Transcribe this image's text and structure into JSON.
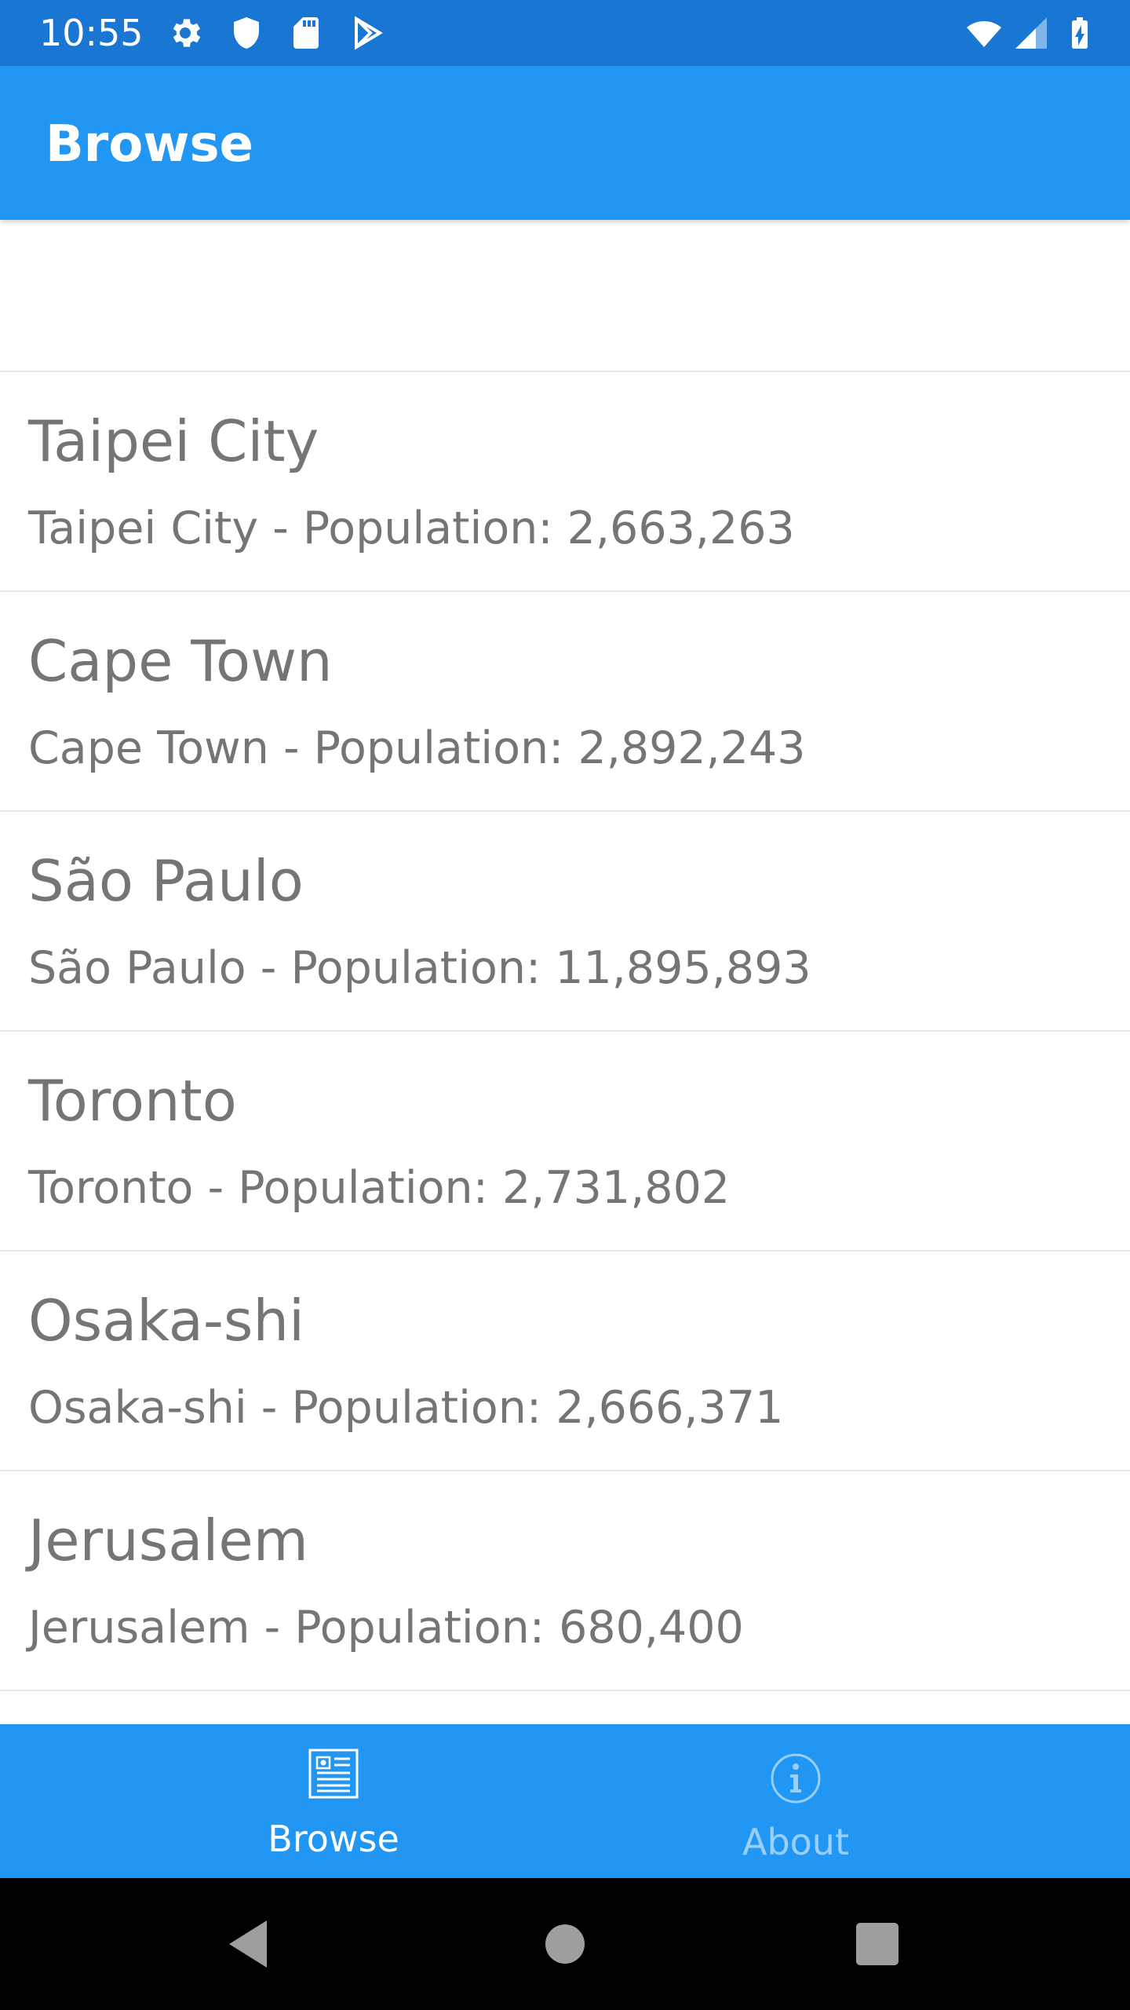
{
  "status_bar": {
    "time": "10:55",
    "icons": [
      "gear-icon",
      "shield-icon",
      "sd-card-icon",
      "play-store-icon",
      "wifi-icon",
      "cell-signal-icon",
      "battery-charging-icon"
    ]
  },
  "app_bar": {
    "title": "Browse"
  },
  "list": {
    "items": [
      {
        "title": "Taipei City",
        "detail": "Taipei City - Population: 2,663,263"
      },
      {
        "title": "Cape Town",
        "detail": "Cape Town - Population: 2,892,243"
      },
      {
        "title": "São Paulo",
        "detail": "São Paulo - Population: 11,895,893"
      },
      {
        "title": "Toronto",
        "detail": "Toronto - Population: 2,731,802"
      },
      {
        "title": "Osaka-shi",
        "detail": "Osaka-shi - Population: 2,666,371"
      },
      {
        "title": "Jerusalem",
        "detail": "Jerusalem - Population: 680,400"
      }
    ]
  },
  "tabs": [
    {
      "label": "Browse",
      "icon": "browse-icon",
      "active": true
    },
    {
      "label": "About",
      "icon": "info-icon",
      "active": false
    }
  ],
  "colors": {
    "status_bar": "#1976D2",
    "primary": "#2196F3",
    "text": "#757575",
    "divider": "#e6e6e6"
  }
}
